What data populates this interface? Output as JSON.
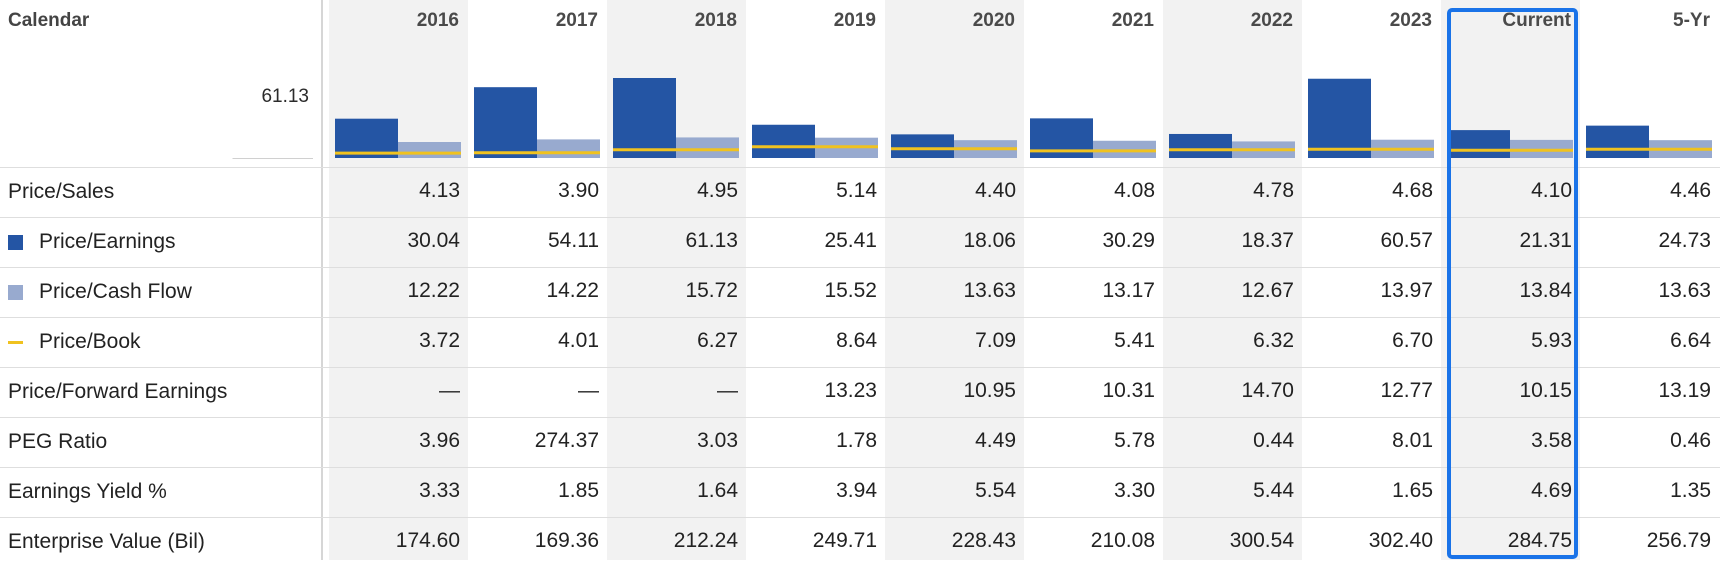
{
  "table": {
    "label": "Calendar",
    "columns": [
      "2016",
      "2017",
      "2018",
      "2019",
      "2020",
      "2021",
      "2022",
      "2023",
      "Current",
      "5-Yr"
    ],
    "axis_max": "61.13",
    "rows": [
      {
        "label": "Price/Sales",
        "legend": null,
        "values": [
          "4.13",
          "3.90",
          "4.95",
          "5.14",
          "4.40",
          "4.08",
          "4.78",
          "4.68",
          "4.10",
          "4.46"
        ]
      },
      {
        "label": "Price/Earnings",
        "legend": "square-dark",
        "values": [
          "30.04",
          "54.11",
          "61.13",
          "25.41",
          "18.06",
          "30.29",
          "18.37",
          "60.57",
          "21.31",
          "24.73"
        ]
      },
      {
        "label": "Price/Cash Flow",
        "legend": "square-light",
        "values": [
          "12.22",
          "14.22",
          "15.72",
          "15.52",
          "13.63",
          "13.17",
          "12.67",
          "13.97",
          "13.84",
          "13.63"
        ]
      },
      {
        "label": "Price/Book",
        "legend": "line-yellow",
        "values": [
          "3.72",
          "4.01",
          "6.27",
          "8.64",
          "7.09",
          "5.41",
          "6.32",
          "6.70",
          "5.93",
          "6.64"
        ]
      },
      {
        "label": "Price/Forward Earnings",
        "legend": null,
        "values": [
          "—",
          "—",
          "—",
          "13.23",
          "10.95",
          "10.31",
          "14.70",
          "12.77",
          "10.15",
          "13.19"
        ]
      },
      {
        "label": "PEG Ratio",
        "legend": null,
        "values": [
          "3.96",
          "274.37",
          "3.03",
          "1.78",
          "4.49",
          "5.78",
          "0.44",
          "8.01",
          "3.58",
          "0.46"
        ]
      },
      {
        "label": "Earnings Yield %",
        "legend": null,
        "values": [
          "3.33",
          "1.85",
          "1.64",
          "3.94",
          "5.54",
          "3.30",
          "5.44",
          "1.65",
          "4.69",
          "1.35"
        ]
      },
      {
        "label": "Enterprise Value (Bil)",
        "legend": null,
        "values": [
          "174.60",
          "169.36",
          "212.24",
          "249.71",
          "228.43",
          "210.08",
          "300.54",
          "302.40",
          "284.75",
          "256.79"
        ]
      }
    ]
  },
  "chart_data": {
    "type": "bar",
    "categories": [
      "2016",
      "2017",
      "2018",
      "2019",
      "2020",
      "2021",
      "2022",
      "2023",
      "Current",
      "5-Yr"
    ],
    "series": [
      {
        "name": "Price/Earnings",
        "values": [
          30.04,
          54.11,
          61.13,
          25.41,
          18.06,
          30.29,
          18.37,
          60.57,
          21.31,
          24.73
        ],
        "color": "#2455a4"
      },
      {
        "name": "Price/Cash Flow",
        "values": [
          12.22,
          14.22,
          15.72,
          15.52,
          13.63,
          13.17,
          12.67,
          13.97,
          13.84,
          13.63
        ],
        "color": "#98aacf"
      },
      {
        "name": "Price/Book",
        "values": [
          3.72,
          4.01,
          6.27,
          8.64,
          7.09,
          5.41,
          6.32,
          6.7,
          5.93,
          6.64
        ],
        "color": "#f0c21f",
        "style": "line"
      }
    ],
    "ylim": [
      0,
      61.13
    ],
    "grid": false,
    "legend": "left-rows"
  },
  "colors": {
    "accent_highlight": "#1a73e8",
    "stripe": "#f2f2f2",
    "pe_bar": "#2455a4",
    "pcf_bar": "#98aacf",
    "pb_line": "#f0c21f"
  }
}
